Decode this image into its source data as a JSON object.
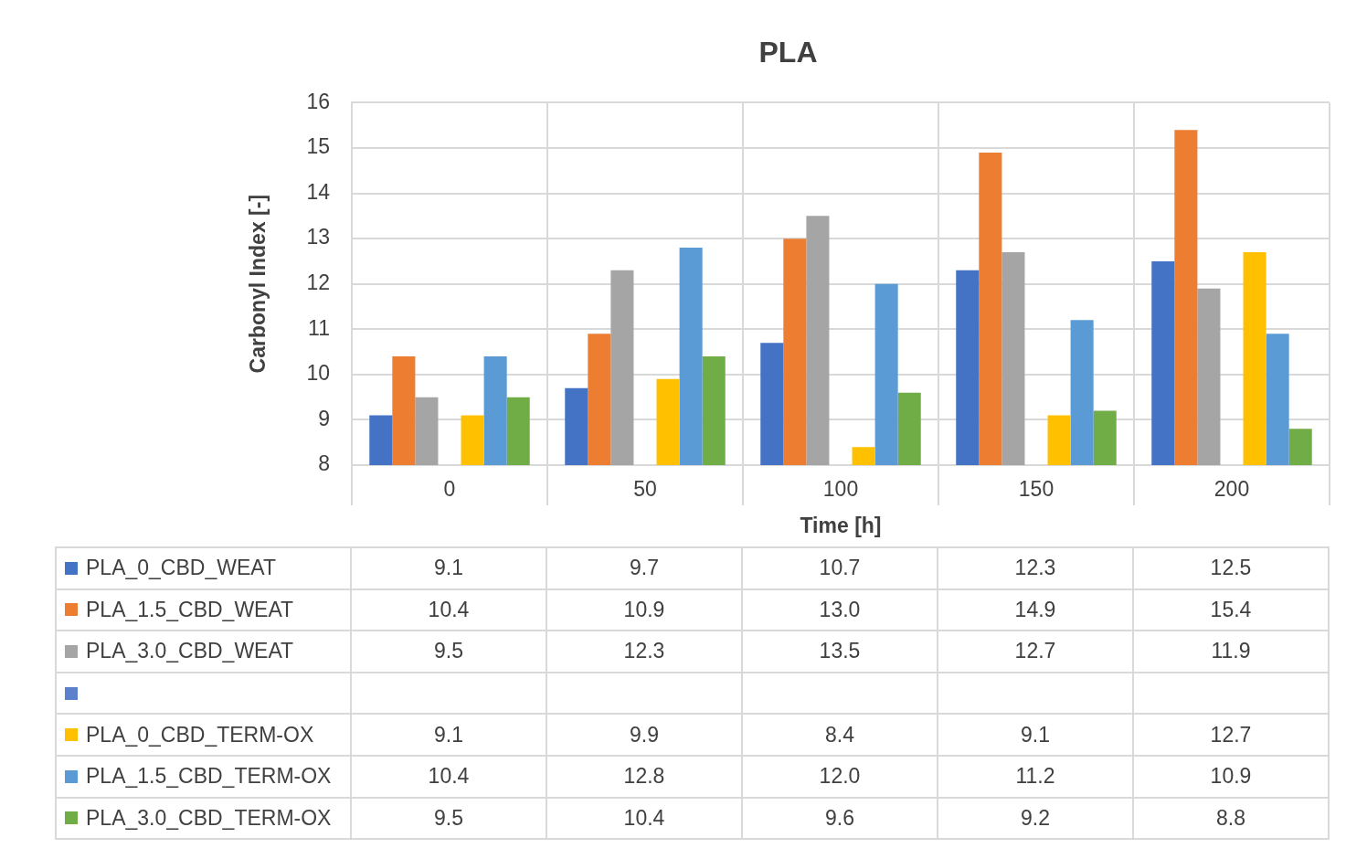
{
  "chart_data": {
    "type": "bar",
    "title": "PLA",
    "xlabel": "Time [h]",
    "ylabel": "Carbonyl Index [-]",
    "categories": [
      "0",
      "50",
      "100",
      "150",
      "200"
    ],
    "ylim": [
      8,
      16
    ],
    "yticks": [
      8,
      9,
      10,
      11,
      12,
      13,
      14,
      15,
      16
    ],
    "grid": true,
    "legend": "bottom",
    "series": [
      {
        "name": "PLA_0_CBD_WEAT",
        "color": "#4472c4",
        "values": [
          9.1,
          9.7,
          10.7,
          12.3,
          12.5
        ],
        "value_labels": [
          "9.1",
          "9.7",
          "10.7",
          "12.3",
          "12.5"
        ]
      },
      {
        "name": "PLA_1.5_CBD_WEAT",
        "color": "#ed7d31",
        "values": [
          10.4,
          10.9,
          13.0,
          14.9,
          15.4
        ],
        "value_labels": [
          "10.4",
          "10.9",
          "13.0",
          "14.9",
          "15.4"
        ]
      },
      {
        "name": "PLA_3.0_CBD_WEAT",
        "color": "#a5a5a5",
        "values": [
          9.5,
          12.3,
          13.5,
          12.7,
          11.9
        ],
        "value_labels": [
          "9.5",
          "12.3",
          "13.5",
          "12.7",
          "11.9"
        ]
      },
      {
        "color": "#5b80cc",
        "values": [
          null,
          null,
          null,
          null,
          null
        ],
        "value_labels": [
          null,
          null,
          null,
          null,
          null
        ]
      },
      {
        "name": "PLA_0_CBD_TERM-OX",
        "color": "#ffc000",
        "values": [
          9.1,
          9.9,
          8.4,
          9.1,
          12.7
        ],
        "value_labels": [
          "9.1",
          "9.9",
          "8.4",
          "9.1",
          "12.7"
        ]
      },
      {
        "name": "PLA_1.5_CBD_TERM-OX",
        "color": "#5b9bd5",
        "values": [
          10.4,
          12.8,
          12.0,
          11.2,
          10.9
        ],
        "value_labels": [
          "10.4",
          "12.8",
          "12.0",
          "11.2",
          "10.9"
        ]
      },
      {
        "name": "PLA_3.0_CBD_TERM-OX",
        "color": "#70ad47",
        "values": [
          9.5,
          10.4,
          9.6,
          9.2,
          8.8
        ],
        "value_labels": [
          "9.5",
          "10.4",
          "9.6",
          "9.2",
          "8.8"
        ]
      }
    ]
  }
}
